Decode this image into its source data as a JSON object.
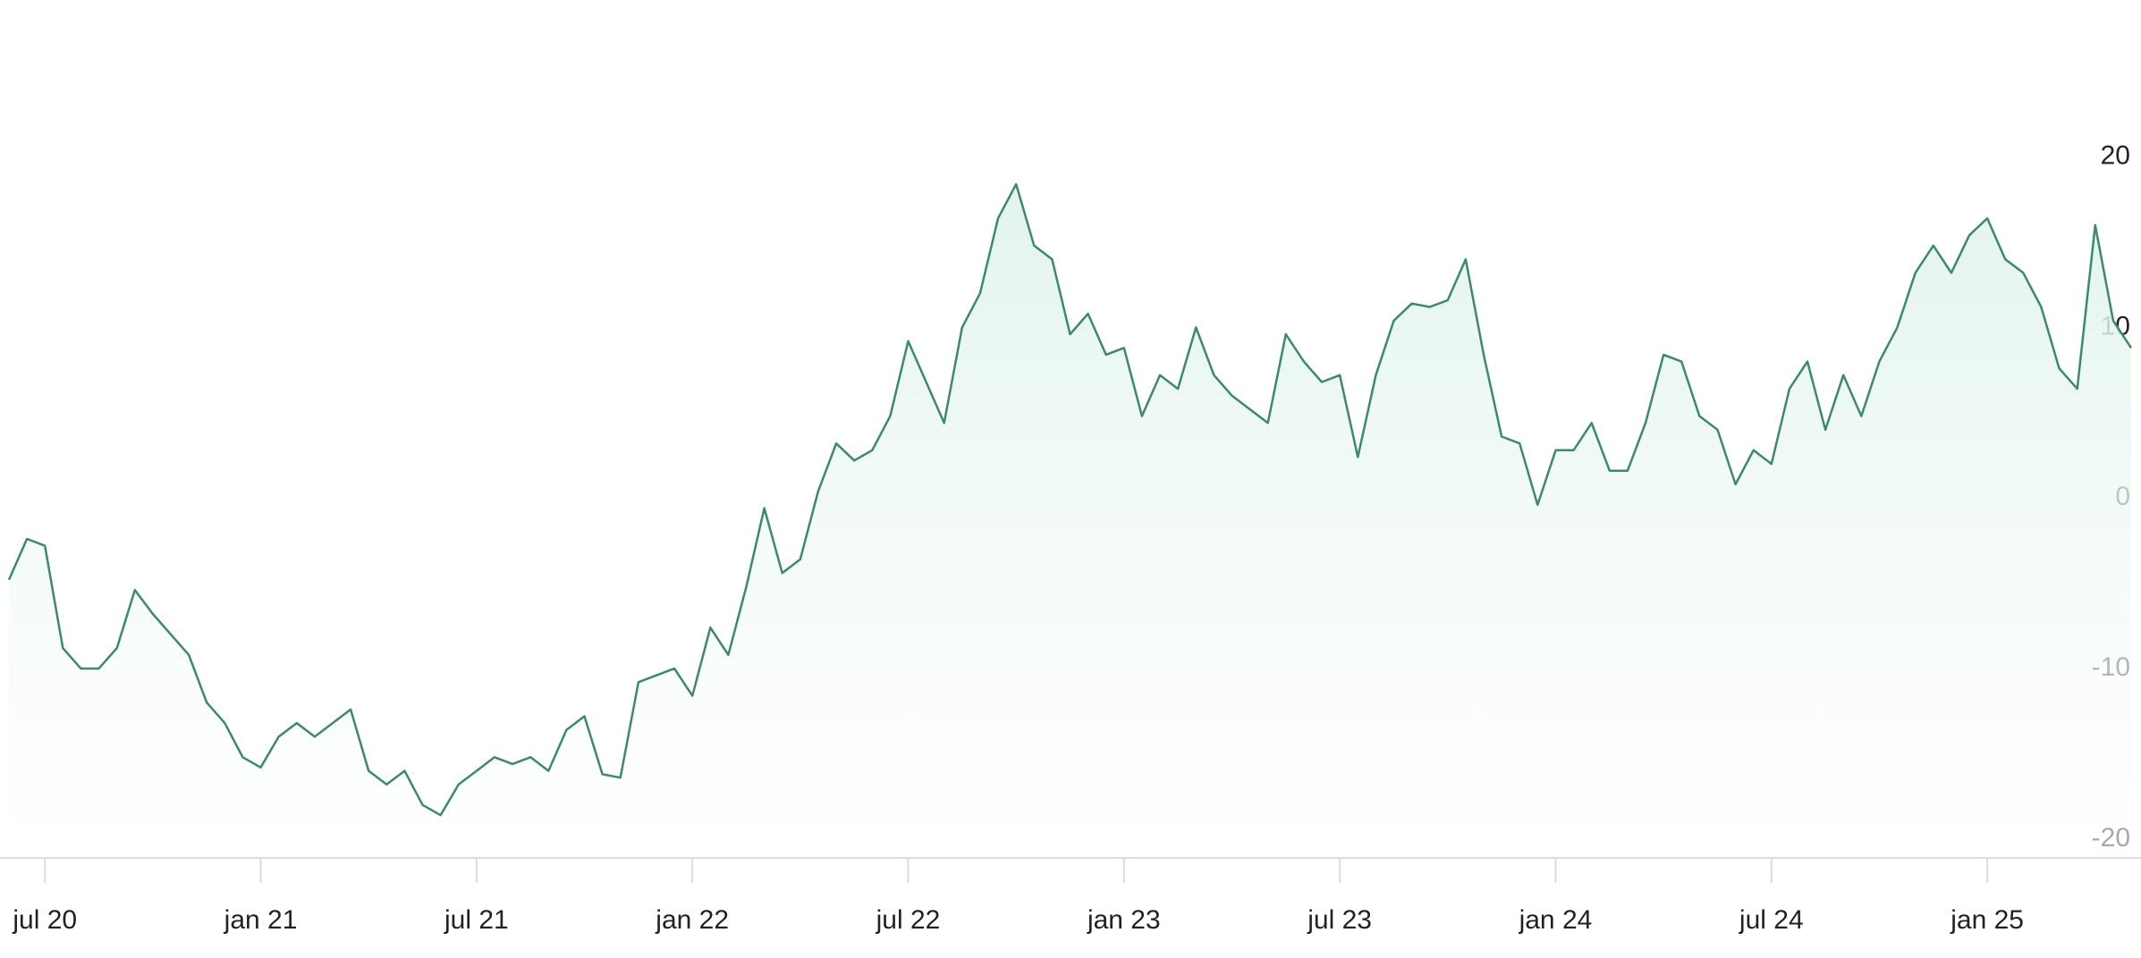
{
  "chart_data": {
    "type": "line",
    "color": "#3b8a6c",
    "area": true,
    "grid": false,
    "categories": [
      null,
      null,
      "jul 20",
      null,
      null,
      null,
      null,
      null,
      null,
      null,
      null,
      null,
      null,
      null,
      "jan 21",
      null,
      null,
      null,
      null,
      null,
      null,
      null,
      null,
      null,
      null,
      null,
      "jul 21",
      null,
      null,
      null,
      null,
      null,
      null,
      null,
      null,
      null,
      null,
      null,
      "jan 22",
      null,
      null,
      null,
      null,
      null,
      null,
      null,
      null,
      null,
      null,
      null,
      "jul 22",
      null,
      null,
      null,
      null,
      null,
      null,
      null,
      null,
      null,
      null,
      null,
      "jan 23",
      null,
      null,
      null,
      null,
      null,
      null,
      null,
      null,
      null,
      null,
      null,
      "jul 23",
      null,
      null,
      null,
      null,
      null,
      null,
      null,
      null,
      null,
      null,
      null,
      "jan 24",
      null,
      null,
      null,
      null,
      null,
      null,
      null,
      null,
      null,
      null,
      null,
      "jul 24",
      null,
      null,
      null,
      null,
      null,
      null,
      null,
      null,
      null,
      null,
      null,
      "jan 25",
      null,
      null,
      null,
      null,
      null,
      null,
      null,
      null
    ],
    "values": [
      -4.8,
      -2.4,
      -2.8,
      -8.8,
      -10,
      -10,
      -8.8,
      -5.4,
      -6.8,
      -8,
      -9.2,
      -12,
      -13.2,
      -15.2,
      -15.8,
      -14,
      -13.2,
      -14,
      -13.2,
      -12.4,
      -16,
      -16.8,
      -16,
      -18,
      -18.6,
      -16.8,
      -16,
      -15.2,
      -15.6,
      -15.2,
      -16,
      -13.6,
      -12.8,
      -16.2,
      -16.4,
      -10.8,
      -10.4,
      -10,
      -11.6,
      -7.6,
      -9.2,
      -5.2,
      -0.6,
      -4.4,
      -3.6,
      0.4,
      3.2,
      2.2,
      2.8,
      4.8,
      9.2,
      6.8,
      4.4,
      10,
      12,
      16.4,
      18.4,
      14.8,
      14,
      9.6,
      10.8,
      8.4,
      8.8,
      4.8,
      7.2,
      6.4,
      10,
      7.2,
      6,
      5.2,
      4.4,
      9.6,
      8,
      6.8,
      7.2,
      2.4,
      7.2,
      10.4,
      11.4,
      11.2,
      11.6,
      14,
      8.4,
      3.6,
      3.2,
      -0.4,
      2.8,
      2.8,
      4.4,
      1.6,
      1.6,
      4.4,
      8.4,
      8,
      4.8,
      4,
      0.8,
      2.8,
      2,
      6.4,
      8,
      4,
      7.2,
      4.8,
      8,
      10,
      13.2,
      14.8,
      13.2,
      15.4,
      16.4,
      14,
      13.2,
      11.2,
      7.6,
      6.4,
      16,
      10.4,
      8.8
    ],
    "ylim": [
      -21,
      29
    ],
    "yticks": [
      -20,
      -10,
      0,
      10,
      20
    ]
  }
}
